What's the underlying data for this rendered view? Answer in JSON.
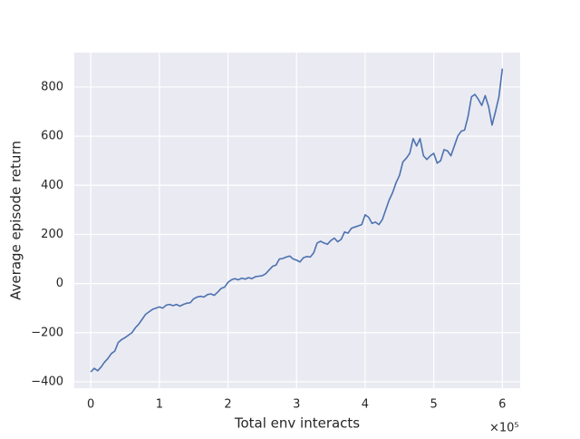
{
  "chart_data": {
    "type": "line",
    "xlabel": "Total env interacts",
    "ylabel": "Average episode return",
    "x_offset_label": "×10⁵",
    "x": [
      0,
      0.05,
      0.1,
      0.15,
      0.2,
      0.25,
      0.3,
      0.35,
      0.4,
      0.45,
      0.5,
      0.55,
      0.6,
      0.65,
      0.7,
      0.75,
      0.8,
      0.85,
      0.9,
      0.95,
      1.0,
      1.05,
      1.1,
      1.15,
      1.2,
      1.25,
      1.3,
      1.35,
      1.4,
      1.45,
      1.5,
      1.55,
      1.6,
      1.65,
      1.7,
      1.75,
      1.8,
      1.85,
      1.9,
      1.95,
      2.0,
      2.05,
      2.1,
      2.15,
      2.2,
      2.25,
      2.3,
      2.35,
      2.4,
      2.45,
      2.5,
      2.55,
      2.6,
      2.65,
      2.7,
      2.75,
      2.8,
      2.85,
      2.9,
      2.95,
      3.0,
      3.05,
      3.1,
      3.15,
      3.2,
      3.25,
      3.3,
      3.35,
      3.4,
      3.45,
      3.5,
      3.55,
      3.6,
      3.65,
      3.7,
      3.75,
      3.8,
      3.85,
      3.9,
      3.95,
      4.0,
      4.05,
      4.1,
      4.15,
      4.2,
      4.25,
      4.3,
      4.35,
      4.4,
      4.45,
      4.5,
      4.55,
      4.6,
      4.65,
      4.7,
      4.75,
      4.8,
      4.85,
      4.9,
      4.95,
      5.0,
      5.05,
      5.1,
      5.15,
      5.2,
      5.25,
      5.3,
      5.35,
      5.4,
      5.45,
      5.5,
      5.55,
      5.6,
      5.65,
      5.7,
      5.75,
      5.8,
      5.85,
      5.9,
      5.95,
      6.0
    ],
    "series": [
      {
        "color": "#4c72b0",
        "values": [
          -360,
          -345,
          -355,
          -340,
          -320,
          -305,
          -285,
          -275,
          -240,
          -228,
          -220,
          -210,
          -200,
          -180,
          -165,
          -145,
          -125,
          -115,
          -105,
          -100,
          -95,
          -100,
          -88,
          -85,
          -90,
          -85,
          -92,
          -85,
          -80,
          -78,
          -62,
          -55,
          -52,
          -55,
          -45,
          -42,
          -48,
          -35,
          -20,
          -15,
          5,
          15,
          20,
          15,
          22,
          18,
          24,
          20,
          28,
          30,
          32,
          40,
          55,
          70,
          75,
          100,
          102,
          108,
          112,
          100,
          95,
          88,
          105,
          110,
          108,
          125,
          165,
          172,
          165,
          160,
          175,
          185,
          170,
          180,
          210,
          205,
          225,
          230,
          235,
          240,
          280,
          270,
          245,
          250,
          240,
          260,
          300,
          340,
          370,
          410,
          440,
          495,
          510,
          530,
          590,
          560,
          590,
          520,
          505,
          520,
          530,
          490,
          500,
          545,
          540,
          520,
          560,
          600,
          620,
          625,
          680,
          760,
          770,
          750,
          725,
          765,
          720,
          645,
          700,
          760,
          875
        ]
      }
    ],
    "xlim": [
      -0.24,
      6.26
    ],
    "ylim": [
      -426,
      940
    ],
    "xticks": [
      0,
      1,
      2,
      3,
      4,
      5,
      6
    ],
    "yticks": [
      {
        "value": -400,
        "label": "−400"
      },
      {
        "value": -200,
        "label": "−200"
      },
      0,
      200,
      400,
      600,
      800
    ],
    "grid": true,
    "background": "#eaeaf2"
  }
}
